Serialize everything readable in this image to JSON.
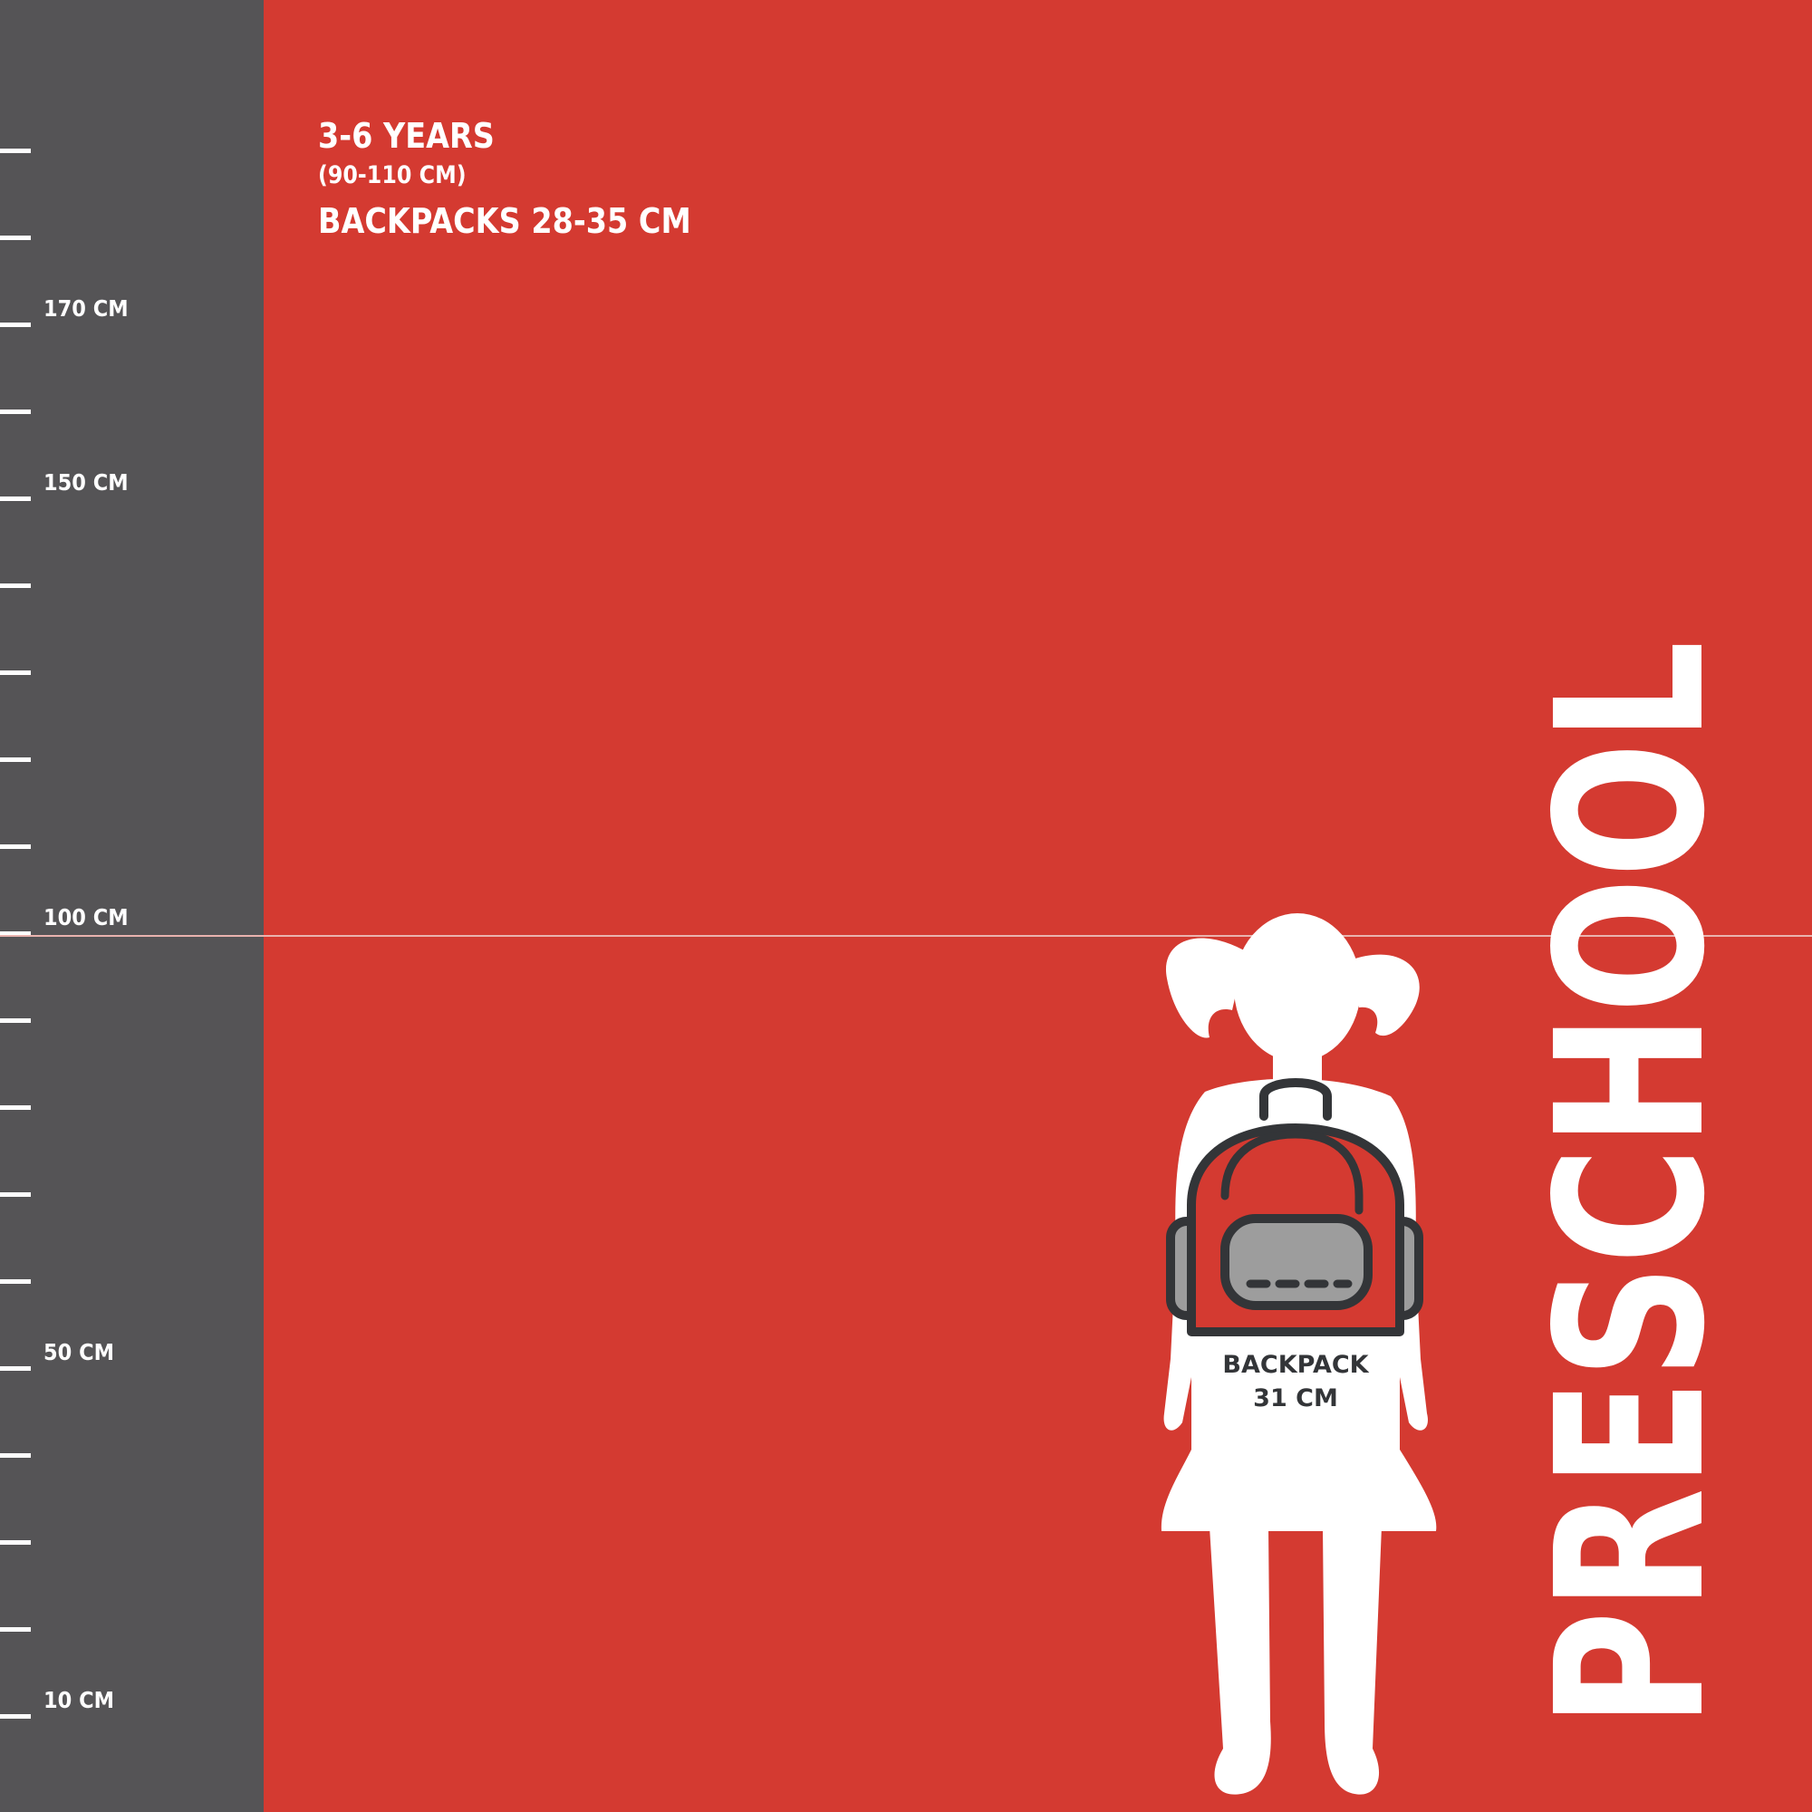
{
  "ruler": {
    "tick_count": 19,
    "labels": [
      {
        "tick": 2,
        "text": "170 CM"
      },
      {
        "tick": 4,
        "text": "150 CM"
      },
      {
        "tick": 9,
        "text": "100 CM"
      },
      {
        "tick": 14,
        "text": "50 CM"
      },
      {
        "tick": 18,
        "text": "10 CM"
      }
    ]
  },
  "info": {
    "age": "3-6 YEARS",
    "height_range": "(90-110 CM)",
    "backpack_range": "BACKPACKS 28-35 CM"
  },
  "title": "PRESCHOOL",
  "backpack": {
    "label": "BACKPACK",
    "size": "31 CM"
  },
  "colors": {
    "background": "#d43a31",
    "ruler": "#555456",
    "outline": "#333538",
    "pocket": "#9d9d9d",
    "text": "#ffffff"
  }
}
